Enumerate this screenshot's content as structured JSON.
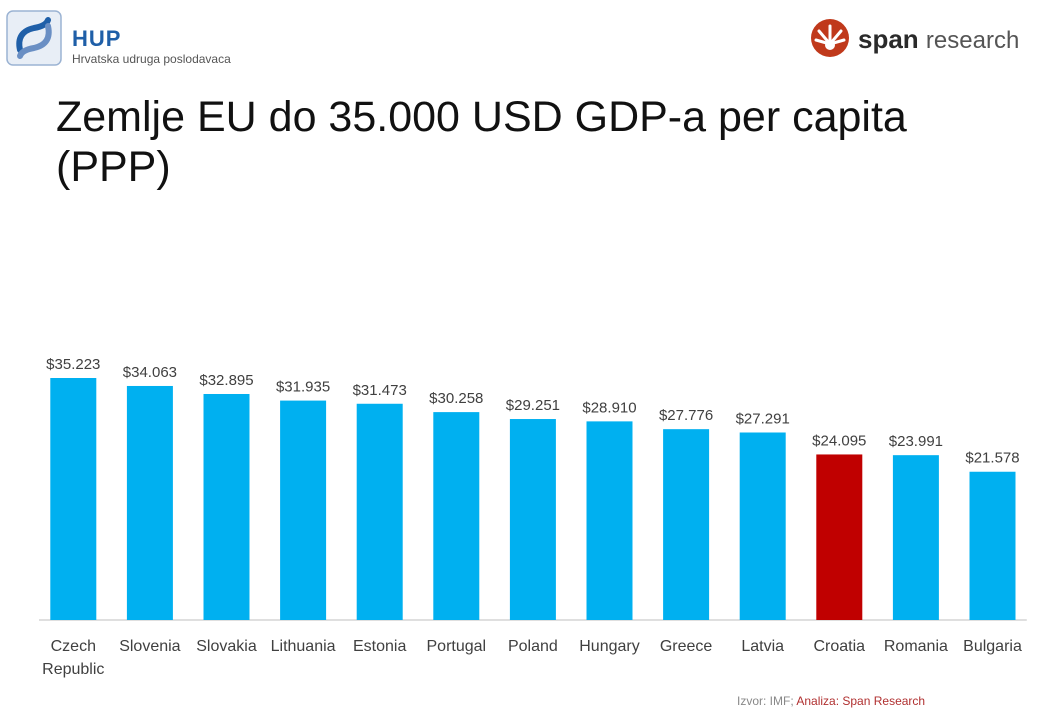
{
  "header": {
    "org_name": "HUP",
    "org_subtitle": "Hrvatska udruga poslodavaca",
    "partner_bold": "span",
    "partner_light": "research"
  },
  "title_line1": "Zemlje EU do 35.000 USD GDP-a per capita",
  "title_line2": "(PPP)",
  "source_prefix": "Izvor: IMF; ",
  "source_analysis": "Analiza: Span Research",
  "colors": {
    "bar": "#00b0f0",
    "highlight": "#c00000",
    "label": "#404040",
    "axis": "#bfbfbf"
  },
  "chart_data": {
    "type": "bar",
    "categories": [
      "Czech Republic",
      "Slovenia",
      "Slovakia",
      "Lithuania",
      "Estonia",
      "Portugal",
      "Poland",
      "Hungary",
      "Greece",
      "Latvia",
      "Croatia",
      "Romania",
      "Bulgaria"
    ],
    "category_lines": [
      [
        "Czech",
        "Republic"
      ],
      [
        "Slovenia"
      ],
      [
        "Slovakia"
      ],
      [
        "Lithuania"
      ],
      [
        "Estonia"
      ],
      [
        "Portugal"
      ],
      [
        "Poland"
      ],
      [
        "Hungary"
      ],
      [
        "Greece"
      ],
      [
        "Latvia"
      ],
      [
        "Croatia"
      ],
      [
        "Romania"
      ],
      [
        "Bulgaria"
      ]
    ],
    "values": [
      35223,
      34063,
      32895,
      31935,
      31473,
      30258,
      29251,
      28910,
      27776,
      27291,
      24095,
      23991,
      21578
    ],
    "data_labels": [
      "$35.223",
      "$34.063",
      "$32.895",
      "$31.935",
      "$31.473",
      "$30.258",
      "$29.251",
      "$28.910",
      "$27.776",
      "$27.291",
      "$24.095",
      "$23.991",
      "$21.578"
    ],
    "highlight": "Croatia",
    "ylim": [
      0,
      35223
    ],
    "grid": false,
    "legend": "none"
  }
}
